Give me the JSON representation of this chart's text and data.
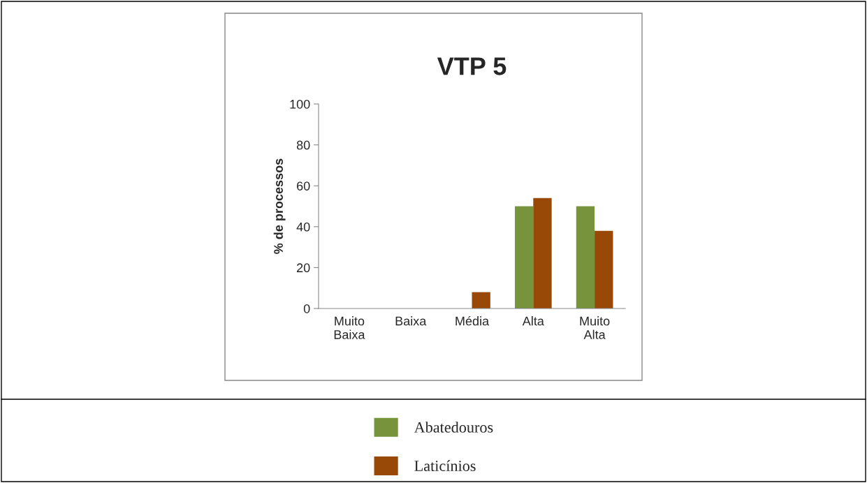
{
  "chart_data": {
    "type": "bar",
    "title": "VTP 5",
    "ylabel": "% de processos",
    "categories": [
      "Muito\nBaixa",
      "Baixa",
      "Média",
      "Alta",
      "Muito\nAlta"
    ],
    "series": [
      {
        "name": "Abatedouros",
        "color": "#77933c",
        "values": [
          0,
          0,
          0,
          50,
          50
        ]
      },
      {
        "name": "Laticínios",
        "color": "#984807",
        "values": [
          0,
          0,
          8,
          54,
          38
        ]
      }
    ],
    "ylim": [
      0,
      100
    ],
    "yticks": [
      0,
      20,
      40,
      60,
      80,
      100
    ],
    "grid": false,
    "legend": "bottom"
  }
}
